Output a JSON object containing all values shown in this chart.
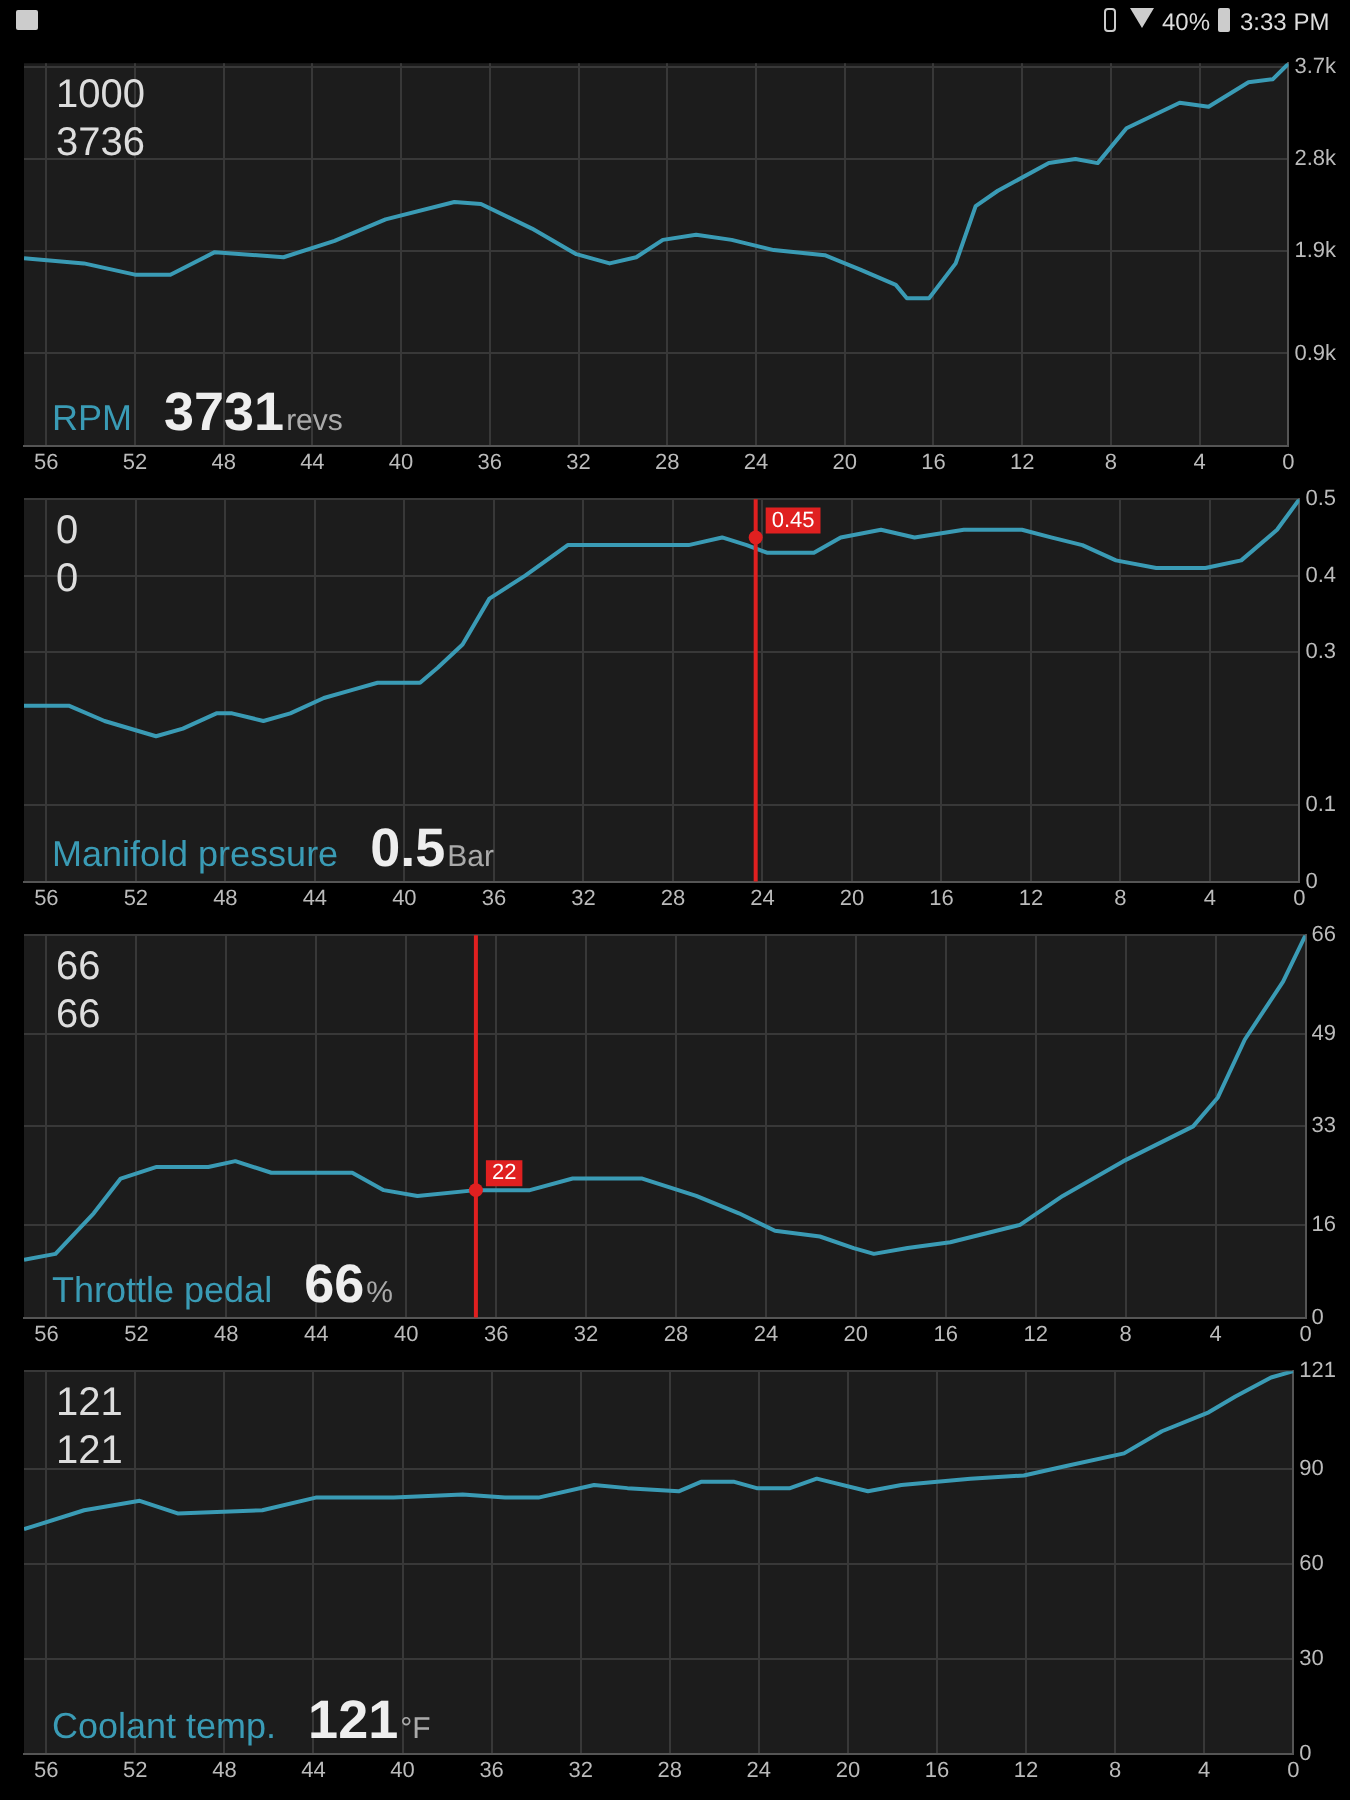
{
  "chart_data": [
    {
      "type": "other",
      "annotations": [
        "40%",
        "3:33 PM"
      ]
    },
    {
      "type": "line",
      "title": "RPM",
      "annotations": [
        "1000",
        "3736",
        "3731",
        "revs"
      ],
      "x": [
        57,
        54.3,
        52,
        50.4,
        48.4,
        45.3,
        43,
        40.7,
        37.6,
        36.4,
        34.1,
        32.1,
        30.6,
        29.4,
        28.2,
        26.7,
        25.1,
        23.2,
        20.9,
        19.3,
        17.7,
        17.2,
        16.2,
        15,
        14.1,
        13.1,
        10.8,
        9.6,
        8.6,
        7.3,
        4.9,
        3.6,
        1.8,
        0.7,
        0
      ],
      "series": [
        {
          "color": "#3a9bb5",
          "values": [
            1830,
            1780,
            1670,
            1670,
            1890,
            1840,
            2000,
            2210,
            2380,
            2360,
            2120,
            1870,
            1780,
            1840,
            2010,
            2060,
            2010,
            1910,
            1860,
            1720,
            1570,
            1440,
            1440,
            1780,
            2340,
            2490,
            2760,
            2800,
            2760,
            3100,
            3350,
            3310,
            3550,
            3580,
            3731
          ]
        }
      ],
      "xlim": [
        57,
        0
      ],
      "xticks": [
        56,
        52,
        48,
        44,
        40,
        36,
        32,
        28,
        24,
        20,
        16,
        12,
        8,
        4,
        0
      ],
      "ylim": [
        0,
        3736
      ],
      "yticks": [
        {
          "value": 900,
          "label": "0.9k"
        },
        {
          "value": 1900,
          "label": "1.9k"
        },
        {
          "value": 2800,
          "label": "2.8k"
        },
        {
          "value": 3700,
          "label": "3.7k"
        }
      ],
      "grid": true,
      "marker": "none",
      "line_style": "solid"
    },
    {
      "type": "line",
      "title": "Manifold pressure",
      "annotations": [
        "0",
        "0",
        "0.5",
        "Bar",
        {
          "text": "0.45",
          "x": 24.3,
          "y": 0.45
        }
      ],
      "x": [
        57,
        55,
        53.4,
        51.1,
        49.9,
        48.4,
        47.7,
        46.3,
        45.1,
        43.6,
        42.4,
        41.2,
        39.3,
        38.5,
        37.4,
        36.2,
        34.6,
        32.7,
        31.2,
        29.2,
        27.3,
        25.8,
        24.7,
        23.8,
        21.7,
        20.5,
        18.7,
        17.2,
        15,
        13.8,
        12.4,
        11.1,
        9.7,
        8.2,
        6.4,
        4.2,
        2.6,
        1,
        0
      ],
      "series": [
        {
          "color": "#3a9bb5",
          "values": [
            0.23,
            0.23,
            0.21,
            0.19,
            0.2,
            0.22,
            0.22,
            0.21,
            0.22,
            0.24,
            0.25,
            0.26,
            0.26,
            0.28,
            0.31,
            0.37,
            0.4,
            0.44,
            0.44,
            0.44,
            0.44,
            0.45,
            0.44,
            0.43,
            0.43,
            0.45,
            0.46,
            0.45,
            0.46,
            0.46,
            0.46,
            0.45,
            0.44,
            0.42,
            0.41,
            0.41,
            0.42,
            0.46,
            0.5
          ]
        }
      ],
      "xlim": [
        57,
        0
      ],
      "xticks": [
        56,
        52,
        48,
        44,
        40,
        36,
        32,
        28,
        24,
        20,
        16,
        12,
        8,
        4,
        0
      ],
      "ylim": [
        0,
        0.5
      ],
      "yticks": [
        0,
        0.1,
        0.3,
        0.4,
        0.5
      ],
      "ref_lines": [
        {
          "axis": "x",
          "value": 24.3,
          "color": "#e02020"
        }
      ],
      "grid": true,
      "marker": "none",
      "line_style": "solid"
    },
    {
      "type": "line",
      "title": "Throttle pedal",
      "annotations": [
        "66",
        "66",
        "66",
        "%",
        {
          "text": "22",
          "x": 36.9,
          "y": 22
        }
      ],
      "x": [
        57,
        55.6,
        53.9,
        52.7,
        51.1,
        48.8,
        47.6,
        46,
        44.5,
        42.4,
        41,
        39.5,
        36.9,
        34.5,
        32.6,
        30.6,
        29.5,
        27.1,
        25.2,
        23.6,
        21.6,
        20.1,
        19.2,
        17.7,
        15.8,
        12.7,
        10.8,
        8.1,
        5,
        3.9,
        2.7,
        1,
        0
      ],
      "series": [
        {
          "color": "#3a9bb5",
          "values": [
            10,
            11,
            18,
            24,
            26,
            26,
            27,
            25,
            25,
            25,
            22,
            21,
            22,
            22,
            24,
            24,
            24,
            21,
            18,
            15,
            14,
            12,
            11,
            12,
            13,
            16,
            21,
            27,
            33,
            38,
            48,
            58,
            66
          ]
        }
      ],
      "xlim": [
        57,
        0
      ],
      "xticks": [
        56,
        52,
        48,
        44,
        40,
        36,
        32,
        28,
        24,
        20,
        16,
        12,
        8,
        4,
        0
      ],
      "ylim": [
        0,
        66
      ],
      "yticks": [
        0,
        16,
        33,
        49,
        66
      ],
      "ref_lines": [
        {
          "axis": "x",
          "value": 36.9,
          "color": "#e02020"
        }
      ],
      "grid": true,
      "marker": "none",
      "line_style": "solid"
    },
    {
      "type": "line",
      "title": "Coolant temp.",
      "annotations": [
        "121",
        "121",
        "121",
        "°F"
      ],
      "x": [
        57,
        54.3,
        51.8,
        50.1,
        46.3,
        43.9,
        40.4,
        37.3,
        35.4,
        33.9,
        31.4,
        29.9,
        27.6,
        26.6,
        25.1,
        24.1,
        22.6,
        21.4,
        19.1,
        17.6,
        14.5,
        12.1,
        10.2,
        7.6,
        5.9,
        3.8,
        2.6,
        1,
        0
      ],
      "series": [
        {
          "color": "#3a9bb5",
          "values": [
            71,
            77,
            80,
            76,
            77,
            81,
            81,
            82,
            81,
            81,
            85,
            84,
            83,
            86,
            86,
            84,
            84,
            87,
            83,
            85,
            87,
            88,
            91,
            95,
            102,
            108,
            113,
            119,
            121
          ]
        }
      ],
      "xlim": [
        57,
        0
      ],
      "xticks": [
        56,
        52,
        48,
        44,
        40,
        36,
        32,
        28,
        24,
        20,
        16,
        12,
        8,
        4,
        0
      ],
      "ylim": [
        0,
        121
      ],
      "yticks": [
        0,
        30,
        60,
        90,
        121
      ],
      "grid": true,
      "marker": "none",
      "line_style": "solid"
    }
  ]
}
